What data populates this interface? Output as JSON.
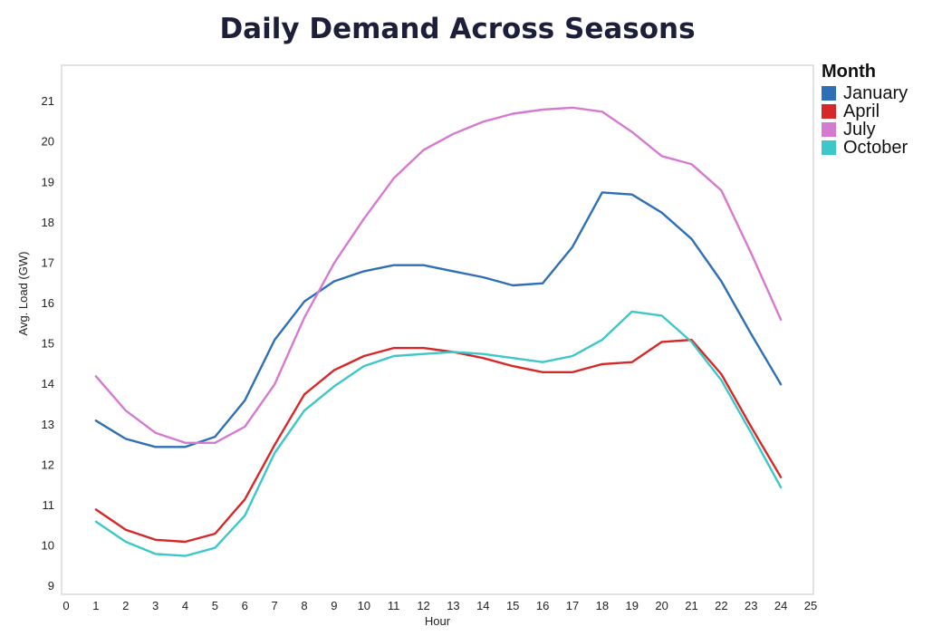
{
  "chart_data": {
    "type": "line",
    "title": "Daily Demand Across Seasons",
    "xlabel": "Hour",
    "ylabel": "Avg. Load (GW)",
    "xlim": [
      0,
      25
    ],
    "ylim": [
      8.8,
      21.9
    ],
    "x_ticks": [
      0,
      1,
      2,
      3,
      4,
      5,
      6,
      7,
      8,
      9,
      10,
      11,
      12,
      13,
      14,
      15,
      16,
      17,
      18,
      19,
      20,
      21,
      22,
      23,
      24,
      25
    ],
    "y_ticks": [
      9,
      10,
      11,
      12,
      13,
      14,
      15,
      16,
      17,
      18,
      19,
      20,
      21
    ],
    "grid": false,
    "legend_title": "Month",
    "legend_position": "right",
    "x": [
      1,
      2,
      3,
      4,
      5,
      6,
      7,
      8,
      9,
      10,
      11,
      12,
      13,
      14,
      15,
      16,
      17,
      18,
      19,
      20,
      21,
      22,
      23,
      24
    ],
    "series": [
      {
        "name": "January",
        "color": "#2e6fb6",
        "values": [
          13.1,
          12.65,
          12.45,
          12.45,
          12.7,
          13.6,
          15.1,
          16.05,
          16.55,
          16.8,
          16.95,
          16.95,
          16.8,
          16.65,
          16.45,
          16.5,
          17.4,
          18.75,
          18.7,
          18.25,
          17.6,
          16.55,
          15.25,
          14.0
        ]
      },
      {
        "name": "April",
        "color": "#d62828",
        "values": [
          10.9,
          10.4,
          10.15,
          10.1,
          10.3,
          11.15,
          12.5,
          13.75,
          14.35,
          14.7,
          14.9,
          14.9,
          14.8,
          14.65,
          14.45,
          14.3,
          14.3,
          14.5,
          14.55,
          15.05,
          15.1,
          14.25,
          12.95,
          11.7
        ]
      },
      {
        "name": "July",
        "color": "#d67ad1",
        "values": [
          14.2,
          13.35,
          12.8,
          12.55,
          12.55,
          12.95,
          14.0,
          15.65,
          17.0,
          18.1,
          19.1,
          19.8,
          20.2,
          20.5,
          20.7,
          20.8,
          20.85,
          20.75,
          20.25,
          19.65,
          19.45,
          18.8,
          17.25,
          15.6
        ]
      },
      {
        "name": "October",
        "color": "#3cc8c8",
        "values": [
          10.6,
          10.1,
          9.8,
          9.75,
          9.95,
          10.75,
          12.3,
          13.35,
          13.95,
          14.45,
          14.7,
          14.75,
          14.8,
          14.75,
          14.65,
          14.55,
          14.7,
          15.1,
          15.8,
          15.7,
          15.05,
          14.1,
          12.8,
          11.45
        ]
      }
    ]
  }
}
